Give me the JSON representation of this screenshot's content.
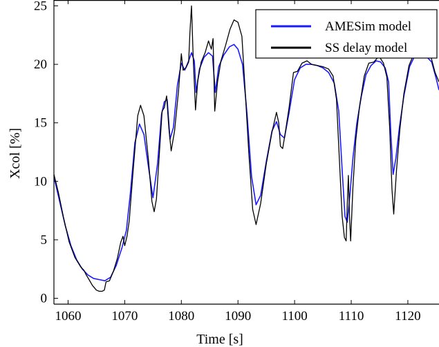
{
  "chart_data": {
    "type": "line",
    "title": "",
    "xlabel": "Time [s]",
    "ylabel": "Xcol [%]",
    "xlim": [
      1057.5,
      1125.5
    ],
    "ylim": [
      -0.5,
      25.5
    ],
    "xticks": [
      1060,
      1070,
      1080,
      1090,
      1100,
      1110,
      1120
    ],
    "yticks": [
      0,
      5,
      10,
      15,
      20,
      25
    ],
    "grid": false,
    "legend": {
      "position": "top-right"
    },
    "series": [
      {
        "name": "AMESim model",
        "color": "#1a1aff",
        "points": [
          [
            1057.5,
            10.4
          ],
          [
            1058.5,
            8.3
          ],
          [
            1059.5,
            6.2
          ],
          [
            1060.5,
            4.5
          ],
          [
            1061.5,
            3.3
          ],
          [
            1062.5,
            2.5
          ],
          [
            1063.5,
            2.0
          ],
          [
            1064.5,
            1.7
          ],
          [
            1065.5,
            1.6
          ],
          [
            1066.5,
            1.5
          ],
          [
            1067.5,
            1.8
          ],
          [
            1068.5,
            2.8
          ],
          [
            1069.5,
            4.3
          ],
          [
            1070.3,
            5.8
          ],
          [
            1071.0,
            9.0
          ],
          [
            1071.8,
            13.3
          ],
          [
            1072.6,
            14.9
          ],
          [
            1073.4,
            14.0
          ],
          [
            1074.2,
            11.2
          ],
          [
            1075.0,
            8.6
          ],
          [
            1075.8,
            11.5
          ],
          [
            1076.5,
            15.7
          ],
          [
            1077.0,
            16.8
          ],
          [
            1077.5,
            17.0
          ],
          [
            1078.0,
            13.6
          ],
          [
            1078.6,
            14.6
          ],
          [
            1079.3,
            18.2
          ],
          [
            1080.0,
            20.1
          ],
          [
            1080.6,
            19.5
          ],
          [
            1081.3,
            20.3
          ],
          [
            1081.8,
            21.0
          ],
          [
            1082.3,
            20.3
          ],
          [
            1082.6,
            17.6
          ],
          [
            1083.2,
            19.6
          ],
          [
            1084.0,
            20.6
          ],
          [
            1084.8,
            21.0
          ],
          [
            1085.5,
            20.7
          ],
          [
            1086.0,
            17.6
          ],
          [
            1086.6,
            19.8
          ],
          [
            1087.5,
            20.8
          ],
          [
            1088.5,
            21.5
          ],
          [
            1089.3,
            21.7
          ],
          [
            1090.0,
            21.3
          ],
          [
            1090.8,
            20.0
          ],
          [
            1091.6,
            15.8
          ],
          [
            1092.4,
            10.4
          ],
          [
            1093.2,
            8.0
          ],
          [
            1094.0,
            8.8
          ],
          [
            1095.0,
            11.7
          ],
          [
            1096.0,
            14.3
          ],
          [
            1096.8,
            15.1
          ],
          [
            1097.5,
            14.0
          ],
          [
            1098.2,
            13.7
          ],
          [
            1099.0,
            15.8
          ],
          [
            1100.0,
            18.7
          ],
          [
            1101.0,
            19.7
          ],
          [
            1102.0,
            20.0
          ],
          [
            1103.0,
            20.0
          ],
          [
            1104.0,
            19.9
          ],
          [
            1105.0,
            19.7
          ],
          [
            1106.0,
            19.3
          ],
          [
            1107.0,
            18.4
          ],
          [
            1107.8,
            16.0
          ],
          [
            1108.4,
            11.0
          ],
          [
            1108.9,
            7.0
          ],
          [
            1109.3,
            6.5
          ],
          [
            1109.8,
            9.0
          ],
          [
            1110.3,
            12.0
          ],
          [
            1111.0,
            15.0
          ],
          [
            1111.8,
            17.3
          ],
          [
            1112.6,
            19.1
          ],
          [
            1113.5,
            19.9
          ],
          [
            1114.4,
            20.3
          ],
          [
            1115.2,
            20.2
          ],
          [
            1116.0,
            19.7
          ],
          [
            1116.6,
            18.5
          ],
          [
            1117.0,
            14.0
          ],
          [
            1117.4,
            10.6
          ],
          [
            1117.9,
            12.0
          ],
          [
            1118.5,
            14.6
          ],
          [
            1119.3,
            17.3
          ],
          [
            1120.3,
            19.8
          ],
          [
            1121.2,
            20.7
          ],
          [
            1122.2,
            20.8
          ],
          [
            1123.2,
            20.7
          ],
          [
            1124.2,
            20.2
          ],
          [
            1125.0,
            18.8
          ],
          [
            1125.5,
            17.8
          ]
        ]
      },
      {
        "name": "SS delay model",
        "color": "#000000",
        "points": [
          [
            1057.5,
            10.6
          ],
          [
            1058.3,
            9.0
          ],
          [
            1059.2,
            6.9
          ],
          [
            1060.2,
            4.8
          ],
          [
            1061.2,
            3.5
          ],
          [
            1062.2,
            2.7
          ],
          [
            1062.8,
            2.4
          ],
          [
            1063.2,
            2.0
          ],
          [
            1063.7,
            1.6
          ],
          [
            1064.3,
            1.1
          ],
          [
            1065.0,
            0.7
          ],
          [
            1065.5,
            0.6
          ],
          [
            1066.0,
            0.6
          ],
          [
            1066.4,
            0.7
          ],
          [
            1066.7,
            1.4
          ],
          [
            1067.3,
            1.5
          ],
          [
            1068.0,
            2.3
          ],
          [
            1068.7,
            3.4
          ],
          [
            1069.3,
            4.8
          ],
          [
            1069.7,
            5.3
          ],
          [
            1070.0,
            4.5
          ],
          [
            1070.4,
            5.3
          ],
          [
            1070.8,
            6.6
          ],
          [
            1071.5,
            11.0
          ],
          [
            1072.3,
            15.6
          ],
          [
            1072.8,
            16.5
          ],
          [
            1073.4,
            15.6
          ],
          [
            1074.2,
            11.8
          ],
          [
            1074.8,
            8.3
          ],
          [
            1075.2,
            7.4
          ],
          [
            1075.6,
            8.5
          ],
          [
            1076.2,
            13.0
          ],
          [
            1076.6,
            16.0
          ],
          [
            1077.0,
            16.3
          ],
          [
            1077.4,
            17.3
          ],
          [
            1077.8,
            14.5
          ],
          [
            1078.2,
            12.6
          ],
          [
            1078.8,
            14.3
          ],
          [
            1079.5,
            17.7
          ],
          [
            1080.0,
            20.9
          ],
          [
            1080.3,
            19.5
          ],
          [
            1080.8,
            19.7
          ],
          [
            1081.3,
            20.2
          ],
          [
            1081.5,
            22.6
          ],
          [
            1081.8,
            25.0
          ],
          [
            1082.1,
            20.5
          ],
          [
            1082.5,
            16.1
          ],
          [
            1082.9,
            18.6
          ],
          [
            1083.5,
            20.2
          ],
          [
            1084.2,
            21.0
          ],
          [
            1084.8,
            22.0
          ],
          [
            1085.3,
            21.3
          ],
          [
            1085.6,
            22.2
          ],
          [
            1085.9,
            16.0
          ],
          [
            1086.4,
            18.5
          ],
          [
            1087.0,
            20.3
          ],
          [
            1087.8,
            21.6
          ],
          [
            1088.6,
            23.0
          ],
          [
            1089.3,
            23.8
          ],
          [
            1090.0,
            23.6
          ],
          [
            1090.7,
            22.4
          ],
          [
            1091.3,
            17.5
          ],
          [
            1091.9,
            12.5
          ],
          [
            1092.6,
            7.6
          ],
          [
            1093.2,
            6.3
          ],
          [
            1094.0,
            8.1
          ],
          [
            1095.0,
            11.5
          ],
          [
            1096.0,
            14.2
          ],
          [
            1096.8,
            15.9
          ],
          [
            1097.2,
            15.0
          ],
          [
            1097.5,
            13.0
          ],
          [
            1097.9,
            12.8
          ],
          [
            1098.3,
            14.0
          ],
          [
            1099.0,
            16.2
          ],
          [
            1099.8,
            19.3
          ],
          [
            1100.5,
            19.4
          ],
          [
            1101.3,
            20.1
          ],
          [
            1102.2,
            20.3
          ],
          [
            1103.0,
            20.0
          ],
          [
            1104.0,
            19.9
          ],
          [
            1105.0,
            19.8
          ],
          [
            1106.0,
            19.6
          ],
          [
            1106.8,
            19.0
          ],
          [
            1107.4,
            17.0
          ],
          [
            1107.9,
            12.0
          ],
          [
            1108.4,
            7.0
          ],
          [
            1108.8,
            5.2
          ],
          [
            1109.1,
            4.9
          ],
          [
            1109.3,
            8.0
          ],
          [
            1109.5,
            10.5
          ],
          [
            1109.7,
            7.0
          ],
          [
            1109.9,
            4.9
          ],
          [
            1110.3,
            9.5
          ],
          [
            1110.8,
            13.5
          ],
          [
            1111.5,
            16.5
          ],
          [
            1112.3,
            19.0
          ],
          [
            1113.1,
            20.1
          ],
          [
            1114.0,
            20.2
          ],
          [
            1114.9,
            20.7
          ],
          [
            1115.7,
            20.1
          ],
          [
            1116.3,
            18.9
          ],
          [
            1116.8,
            14.5
          ],
          [
            1117.2,
            9.3
          ],
          [
            1117.5,
            7.2
          ],
          [
            1118.0,
            11.0
          ],
          [
            1118.6,
            14.5
          ],
          [
            1119.3,
            17.5
          ],
          [
            1120.2,
            19.9
          ],
          [
            1121.0,
            20.8
          ],
          [
            1122.0,
            20.6
          ],
          [
            1122.6,
            20.8
          ],
          [
            1123.2,
            20.6
          ],
          [
            1124.0,
            20.8
          ],
          [
            1124.8,
            19.3
          ],
          [
            1125.5,
            18.5
          ]
        ]
      }
    ]
  }
}
